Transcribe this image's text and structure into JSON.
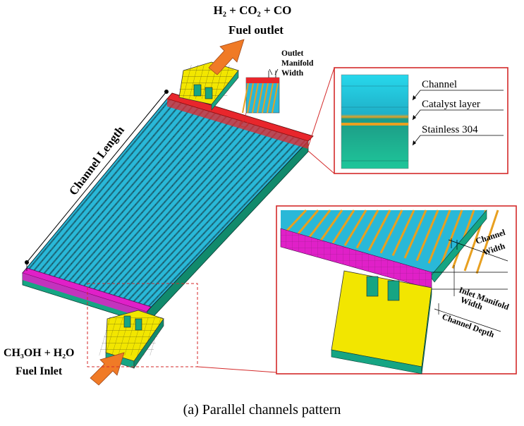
{
  "outlet_formula": "H₂ + CO₂ + CO",
  "outlet_label": "Fuel outlet",
  "inlet_formula": "CH₃OH + H₂O",
  "inlet_label": "Fuel Inlet",
  "channel_length_label": "Channel Length",
  "outlet_manifold_width": [
    "Outlet",
    "Manifold",
    "Width"
  ],
  "layers": {
    "channel": "Channel",
    "catalyst": "Catalyst layer",
    "substrate": "Stainless 304"
  },
  "zoom_labels": {
    "channel_width": [
      "Channel",
      "Width"
    ],
    "inlet_manifold_width": [
      "Inlet Manifold",
      "Width"
    ],
    "channel_depth": "Channel Depth"
  },
  "caption": "(a) Parallel channels pattern",
  "colors": {
    "channel": "#29b8d8",
    "catalyst": "#e8a020",
    "outlet_manifold": "#e8262c",
    "inlet_manifold": "#e020c8",
    "port": "#f2e600",
    "substrate": "#16a583",
    "arrow": "#f07a26",
    "callout": "#d42a2a"
  },
  "icons": [
    "inlet-arrow-icon",
    "outlet-arrow-icon"
  ]
}
